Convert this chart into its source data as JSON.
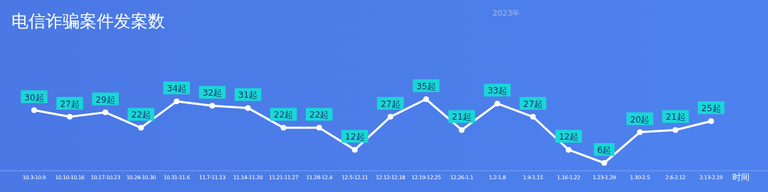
{
  "chart_data": {
    "type": "line",
    "title": "电信诈骗案件发案数",
    "xlabel": "时间",
    "annotations": [
      "2023年"
    ],
    "categories": [
      "10.3-10.9",
      "10.10-10.16",
      "10.17-10.23",
      "10.24-10.30",
      "10.31-11.6",
      "11.7-11.13",
      "11.14-11.20",
      "11.21-11.27",
      "11.28-12.4",
      "12.5-12.11",
      "12.12-12.18",
      "12.19-12.25",
      "12.26-1.1",
      "1.2-1.8",
      "1.9-1.15",
      "1.16-1.22",
      "1.23-1.29",
      "1.30-2.5",
      "2.6-2.12",
      "2.13-2.19"
    ],
    "series": [
      {
        "color": "#ffffff",
        "values": [
          30,
          27,
          29,
          22,
          34,
          32,
          31,
          22,
          22,
          12,
          27,
          35,
          21,
          33,
          27,
          12,
          6,
          20,
          21,
          25
        ],
        "value_labels": [
          "30起",
          "27起",
          "29起",
          "22起",
          "34起",
          "32起",
          "31起",
          "22起",
          "22起",
          "12起",
          "27起",
          "35起",
          "21起",
          "33起",
          "27起",
          "12起",
          "6起",
          "20起",
          "21起",
          "25起"
        ]
      }
    ],
    "marker": "circle"
  }
}
